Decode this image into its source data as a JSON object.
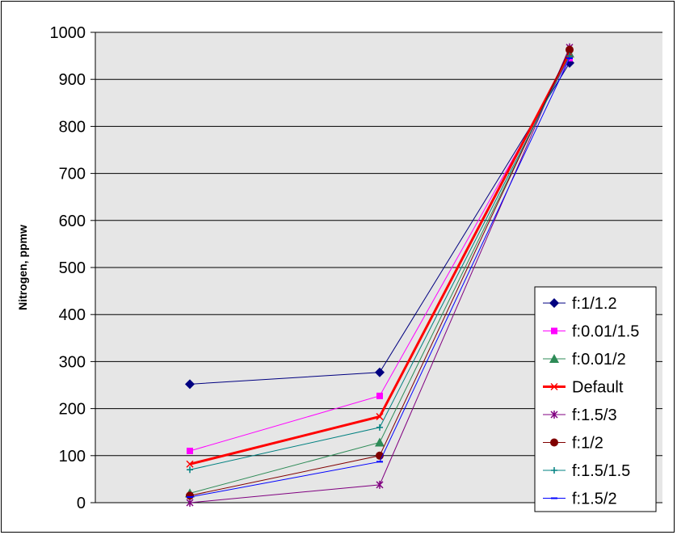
{
  "chart_data": {
    "type": "line",
    "ylabel": "Nitrogen, ppmw",
    "xlabel": "",
    "ylim": [
      0,
      1000
    ],
    "yticks": [
      0,
      100,
      200,
      300,
      400,
      500,
      600,
      700,
      800,
      900,
      1000
    ],
    "grid": true,
    "legend_position": "bottom-right",
    "x": [
      1,
      2,
      3
    ],
    "series": [
      {
        "name": "f:1/1.2",
        "values": [
          252,
          277,
          935
        ],
        "color": "#000080",
        "marker": "diamond"
      },
      {
        "name": "f:0.01/1.5",
        "values": [
          110,
          227,
          945
        ],
        "color": "#ff00ff",
        "marker": "square"
      },
      {
        "name": "f:0.01/2",
        "values": [
          20,
          128,
          955
        ],
        "color": "#2e8b57",
        "marker": "triangle"
      },
      {
        "name": "Default",
        "values": [
          82,
          183,
          955
        ],
        "color": "#ff0000",
        "marker": "x",
        "bold": true
      },
      {
        "name": "f:1.5/3",
        "values": [
          0,
          38,
          968
        ],
        "color": "#800080",
        "marker": "star"
      },
      {
        "name": "f:1/2",
        "values": [
          15,
          100,
          963
        ],
        "color": "#800000",
        "marker": "circle"
      },
      {
        "name": "f:1.5/1.5",
        "values": [
          70,
          160,
          950
        ],
        "color": "#008080",
        "marker": "plus"
      },
      {
        "name": "f:1.5/2",
        "values": [
          12,
          87,
          945
        ],
        "color": "#0000ff",
        "marker": "dash"
      }
    ]
  }
}
